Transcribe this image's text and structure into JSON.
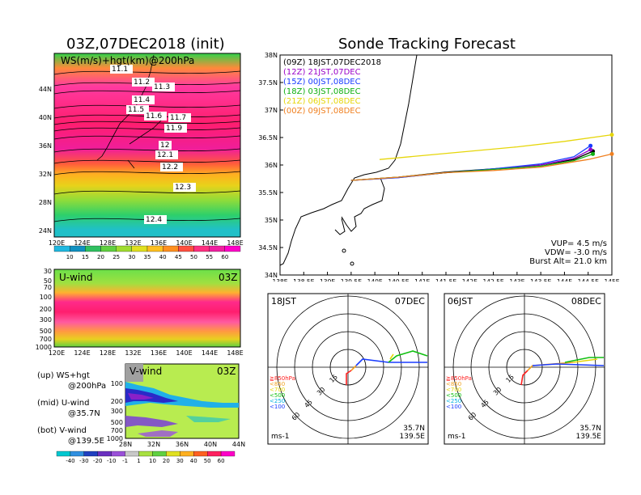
{
  "left": {
    "title": "03Z,07DEC2018 (init)",
    "map_label": "WS(m/s)+hgt(km)@200hPa",
    "lon_ticks": [
      "120E",
      "124E",
      "128E",
      "132E",
      "136E",
      "140E",
      "144E",
      "148E"
    ],
    "lat_ticks": [
      "24N",
      "28N",
      "32N",
      "36N",
      "40N",
      "44N"
    ],
    "contour_labels": [
      "11.1",
      "11.2",
      "11.3",
      "11.4",
      "11.5",
      "11.6",
      "11.7",
      "11.9",
      "12",
      "12.1",
      "12.2",
      "12.3",
      "12.4"
    ],
    "ws_colorbar": [
      "10",
      "15",
      "20",
      "25",
      "30",
      "35",
      "40",
      "45",
      "50",
      "55",
      "60"
    ],
    "u_label": "U-wind",
    "u_time": "03Z",
    "p_ticks": [
      "30",
      "50",
      "70",
      "100",
      "200",
      "300",
      "500",
      "700",
      "1000"
    ],
    "v_label": "V-wind",
    "v_time": "03Z",
    "v_lat_ticks": [
      "28N",
      "32N",
      "36N",
      "40N",
      "44N"
    ],
    "v_p_ticks": [
      "100",
      "200",
      "300",
      "500",
      "700",
      "1000"
    ],
    "v_colorbar": [
      "-40",
      "-30",
      "-20",
      "-10",
      "-1",
      "1",
      "10",
      "20",
      "30",
      "40",
      "50",
      "60"
    ],
    "legend": [
      {
        "a": "(up)  WS+hgt",
        "b": "@200hPa"
      },
      {
        "a": "(mid)  U-wind",
        "b": "@35.7N"
      },
      {
        "a": "(bot)  V-wind",
        "b": "@139.5E"
      }
    ]
  },
  "track": {
    "title": "Sonde Tracking Forecast",
    "lat_ticks": [
      "38N",
      "37.5N",
      "37N",
      "36.5N",
      "36N",
      "35.5N",
      "35N",
      "34.5N",
      "34N"
    ],
    "lon_ticks": [
      "138E",
      "138.5E",
      "139E",
      "139.5E",
      "140E",
      "140.5E",
      "141E",
      "141.5E",
      "142E",
      "142.5E",
      "143E",
      "143.5E",
      "144E",
      "144.5E",
      "145E"
    ],
    "legend": [
      {
        "text": "(09Z)  18JST,07DEC2018",
        "color": "#000000"
      },
      {
        "text": "(12Z)  21JST,07DEC",
        "color": "#9a00c8"
      },
      {
        "text": "(15Z)  00JST,08DEC",
        "color": "#1a3cff"
      },
      {
        "text": "(18Z)  03JST,08DEC",
        "color": "#10b010"
      },
      {
        "text": "(21Z)  06JST,08DEC",
        "color": "#e6d60a"
      },
      {
        "text": "(00Z)  09JST,08DEC",
        "color": "#f08020"
      }
    ],
    "vup": "VUP= 4.5 m/s",
    "vdw": "VDW= -3.0 m/s",
    "burst": "Burst Alt= 21.0 km"
  },
  "polar": [
    {
      "time": "18JST",
      "date": "07DEC",
      "loc1": "35.7N",
      "loc2": "139.5E",
      "unit": "ms-1"
    },
    {
      "time": "06JST",
      "date": "08DEC",
      "loc1": "35.7N",
      "loc2": "139.5E",
      "unit": "ms-1"
    }
  ],
  "polar_rings": [
    "15",
    "30",
    "45",
    "60"
  ],
  "polar_levels": [
    {
      "text": "≧850hPa",
      "color": "#ff2020"
    },
    {
      "text": "<850",
      "color": "#f0a020"
    },
    {
      "text": "<700",
      "color": "#e6d60a"
    },
    {
      "text": "<500",
      "color": "#10c010"
    },
    {
      "text": "<250",
      "color": "#00b0e0"
    },
    {
      "text": "<100",
      "color": "#1a3cff"
    }
  ],
  "chart_data": [
    {
      "type": "heatmap",
      "title": "03Z,07DEC2018 (init)",
      "label": "WS(m/s)+hgt(km)@200hPa",
      "x_range": [
        "120E",
        "150E"
      ],
      "y_range": [
        "22N",
        "47N"
      ],
      "colorbar": [
        10,
        15,
        20,
        25,
        30,
        35,
        40,
        45,
        50,
        55,
        60
      ],
      "contours_km": [
        11.1,
        11.2,
        11.3,
        11.4,
        11.5,
        11.6,
        11.7,
        11.9,
        12,
        12.1,
        12.2,
        12.3,
        12.4
      ]
    },
    {
      "type": "heatmap",
      "label": "U-wind",
      "time": "03Z",
      "y_ticks_hPa": [
        30,
        50,
        70,
        100,
        200,
        300,
        500,
        700,
        1000
      ]
    },
    {
      "type": "heatmap",
      "label": "V-wind",
      "time": "03Z",
      "colorbar": [
        -40,
        -30,
        -20,
        -10,
        -1,
        1,
        10,
        20,
        30,
        40,
        50,
        60
      ]
    },
    {
      "type": "line",
      "title": "Sonde Tracking Forecast",
      "xlim": [
        138,
        145
      ],
      "ylim": [
        34,
        38
      ],
      "series": [
        {
          "name": "(09Z)  18JST,07DEC2018",
          "x": [
            139.5,
            140.5,
            141.5,
            142.5,
            143.5,
            144.2,
            144.6
          ],
          "y": [
            35.72,
            35.78,
            35.87,
            35.93,
            36.0,
            36.1,
            36.25
          ]
        },
        {
          "name": "(12Z)  21JST,07DEC",
          "x": [
            139.5,
            140.5,
            141.5,
            142.5,
            143.5,
            144.2,
            144.55
          ],
          "y": [
            35.72,
            35.77,
            35.86,
            35.92,
            36.0,
            36.12,
            36.28
          ]
        },
        {
          "name": "(15Z)  00JST,08DEC",
          "x": [
            139.5,
            140.5,
            141.5,
            142.5,
            143.5,
            144.2,
            144.55
          ],
          "y": [
            35.72,
            35.77,
            35.86,
            35.93,
            36.02,
            36.15,
            36.35
          ]
        },
        {
          "name": "(18Z)  03JST,08DEC",
          "x": [
            139.5,
            140.5,
            141.5,
            142.5,
            143.5,
            144.2,
            144.6
          ],
          "y": [
            35.72,
            35.78,
            35.86,
            35.92,
            35.98,
            36.08,
            36.2
          ]
        },
        {
          "name": "(21Z)  06JST,08DEC",
          "x": [
            140.1,
            141.0,
            142.0,
            143.0,
            144.0,
            145.0
          ],
          "y": [
            36.1,
            36.17,
            36.25,
            36.33,
            36.43,
            36.55
          ]
        },
        {
          "name": "(00Z)  09JST,08DEC",
          "x": [
            139.5,
            140.5,
            141.5,
            142.5,
            143.5,
            144.5,
            145.0
          ],
          "y": [
            35.72,
            35.78,
            35.86,
            35.9,
            35.96,
            36.1,
            36.2
          ]
        }
      ]
    }
  ]
}
